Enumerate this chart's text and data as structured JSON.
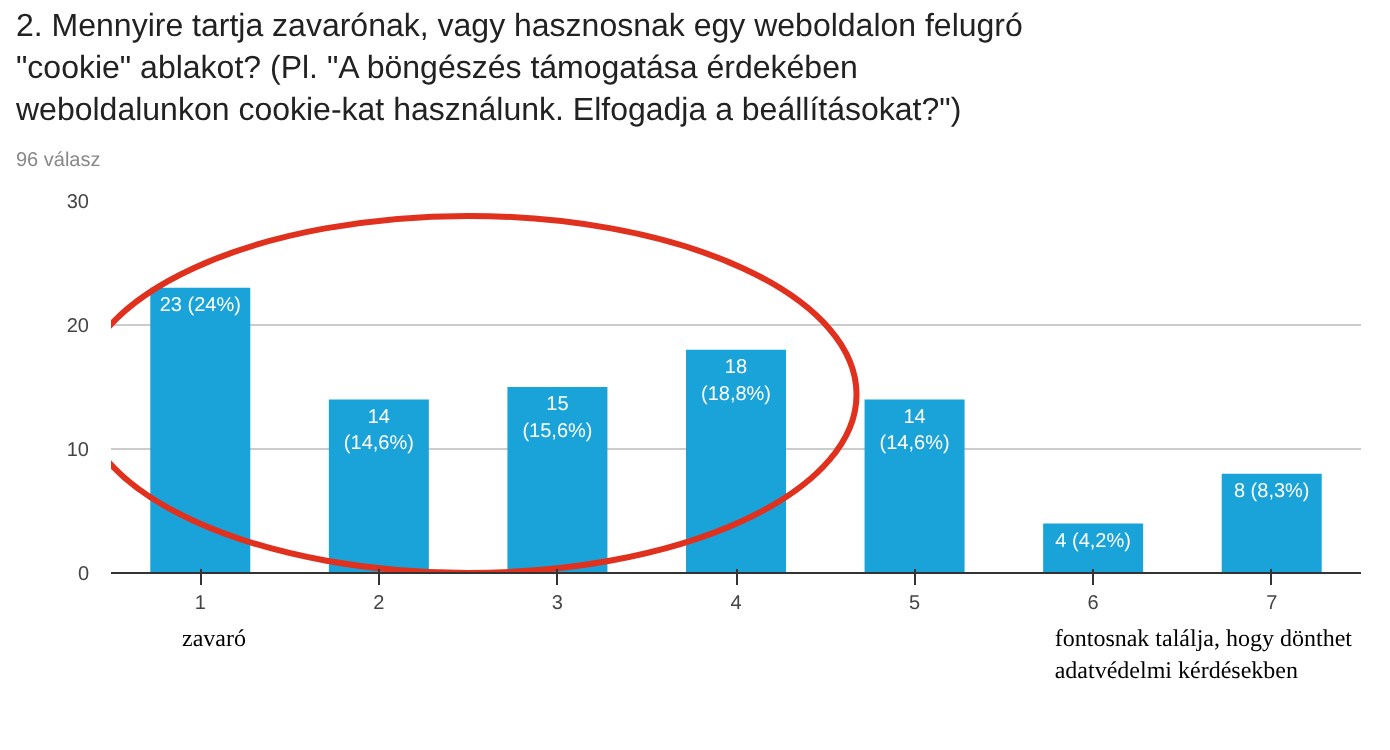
{
  "chart_data": {
    "type": "bar",
    "title": "2. Mennyire tartja zavarónak, vagy hasznosnak egy weboldalon felugró\n\"cookie\" ablakot? (Pl. \"A böngészés támogatása érdekében\nweboldalunkon cookie-kat használunk. Elfogadja a beállításokat?\")",
    "subtitle": "96 válasz",
    "categories": [
      "1",
      "2",
      "3",
      "4",
      "5",
      "6",
      "7"
    ],
    "values": [
      23,
      14,
      15,
      18,
      14,
      4,
      8
    ],
    "value_labels": [
      "23 (24%)",
      "14\n(14,6%)",
      "15\n(15,6%)",
      "18\n(18,8%)",
      "14\n(14,6%)",
      "4 (4,2%)",
      "8 (8,3%)"
    ],
    "color": "#1aa3d9",
    "ylim": [
      0,
      30
    ],
    "yticks": [
      0,
      10,
      20,
      30
    ],
    "grid": "y",
    "annotations": [
      "zavaró",
      "fontosnak találja, hogy dönthet\nadatvédelmi kérdésekben"
    ]
  }
}
